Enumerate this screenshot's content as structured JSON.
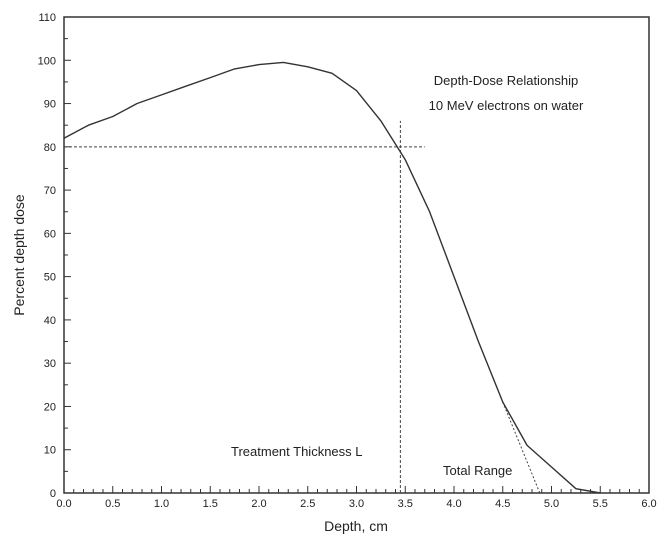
{
  "chart_data": {
    "type": "line",
    "title": "",
    "annotations": [
      "Depth-Dose Relationship",
      "10 MeV electrons on water",
      "Treatment Thickness L",
      "Total Range"
    ],
    "xlabel": "Depth,  cm",
    "ylabel": "Percent depth dose",
    "xlim": [
      0,
      6
    ],
    "ylim": [
      0,
      110
    ],
    "x_ticks": [
      0.0,
      0.5,
      1.0,
      1.5,
      2.0,
      2.5,
      3.0,
      3.5,
      4.0,
      4.5,
      5.0,
      5.5,
      6.0
    ],
    "x_tick_labels": [
      "0.0",
      "0.5",
      "1.0",
      "1.5",
      "2.0",
      "2.5",
      "3.0",
      "3.5",
      "4.0",
      "4.5",
      "5.0",
      "5.5",
      "6.0"
    ],
    "y_ticks": [
      0,
      10,
      20,
      30,
      40,
      50,
      60,
      70,
      80,
      90,
      100,
      110
    ],
    "y_tick_labels": [
      "0",
      "10",
      "20",
      "30",
      "40",
      "50",
      "60",
      "70",
      "80",
      "90",
      "100",
      "110"
    ],
    "grid": false,
    "series": [
      {
        "x": [
          0.0,
          0.25,
          0.5,
          0.75,
          1.0,
          1.25,
          1.5,
          1.75,
          2.0,
          2.25,
          2.5,
          2.75,
          3.0,
          3.25,
          3.5,
          3.75,
          4.0,
          4.25,
          4.5,
          4.75,
          5.0,
          5.25,
          5.5
        ],
        "y": [
          82,
          85,
          87,
          90,
          92,
          94,
          96,
          98,
          99,
          99.5,
          98.5,
          97,
          93,
          86,
          77,
          65,
          50,
          35,
          21,
          11,
          6,
          1,
          0
        ],
        "color": "#333333"
      }
    ],
    "reference_lines": {
      "dose_80_percent": {
        "y": 80,
        "x_start": 0,
        "x_end": 3.7
      },
      "treatment_thickness": {
        "x": 3.45,
        "y_start": 0,
        "y_end": 86
      },
      "total_range_tangent": {
        "x": [
          4.5,
          4.88
        ],
        "y": [
          21,
          0
        ]
      }
    }
  }
}
